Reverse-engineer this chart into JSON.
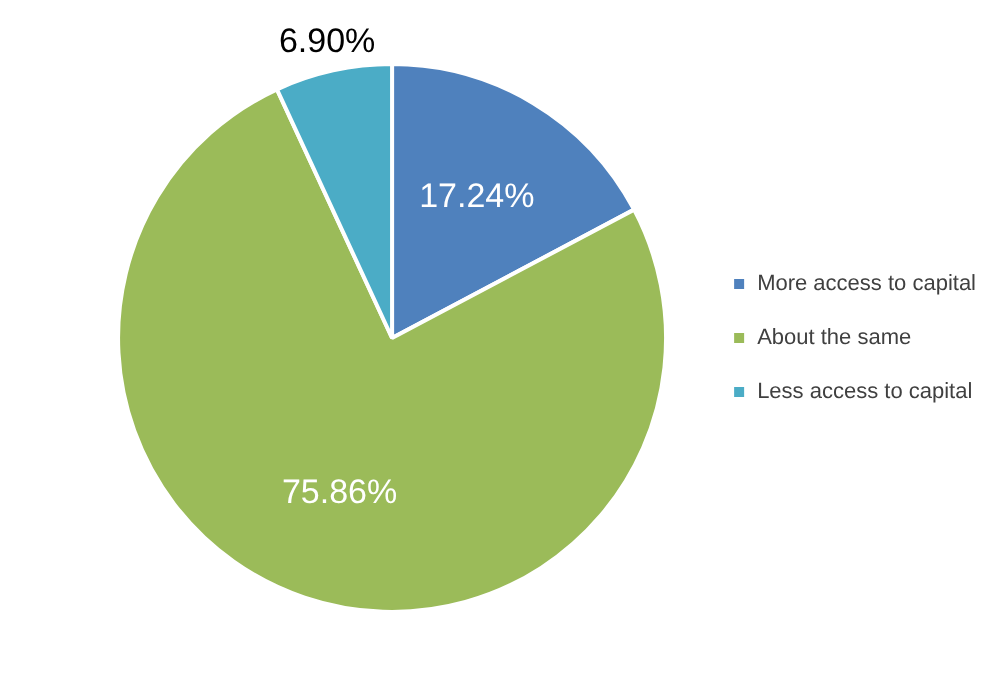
{
  "chart_data": {
    "type": "pie",
    "categories": [
      "More access to capital",
      "About the same",
      "Less access to capital"
    ],
    "values": [
      17.24,
      75.86,
      6.9
    ],
    "colors": [
      "#4f81bd",
      "#9bbb59",
      "#4bacc6"
    ],
    "value_labels": [
      "17.24%",
      "75.86%",
      "6.90%"
    ],
    "legend": "right"
  }
}
